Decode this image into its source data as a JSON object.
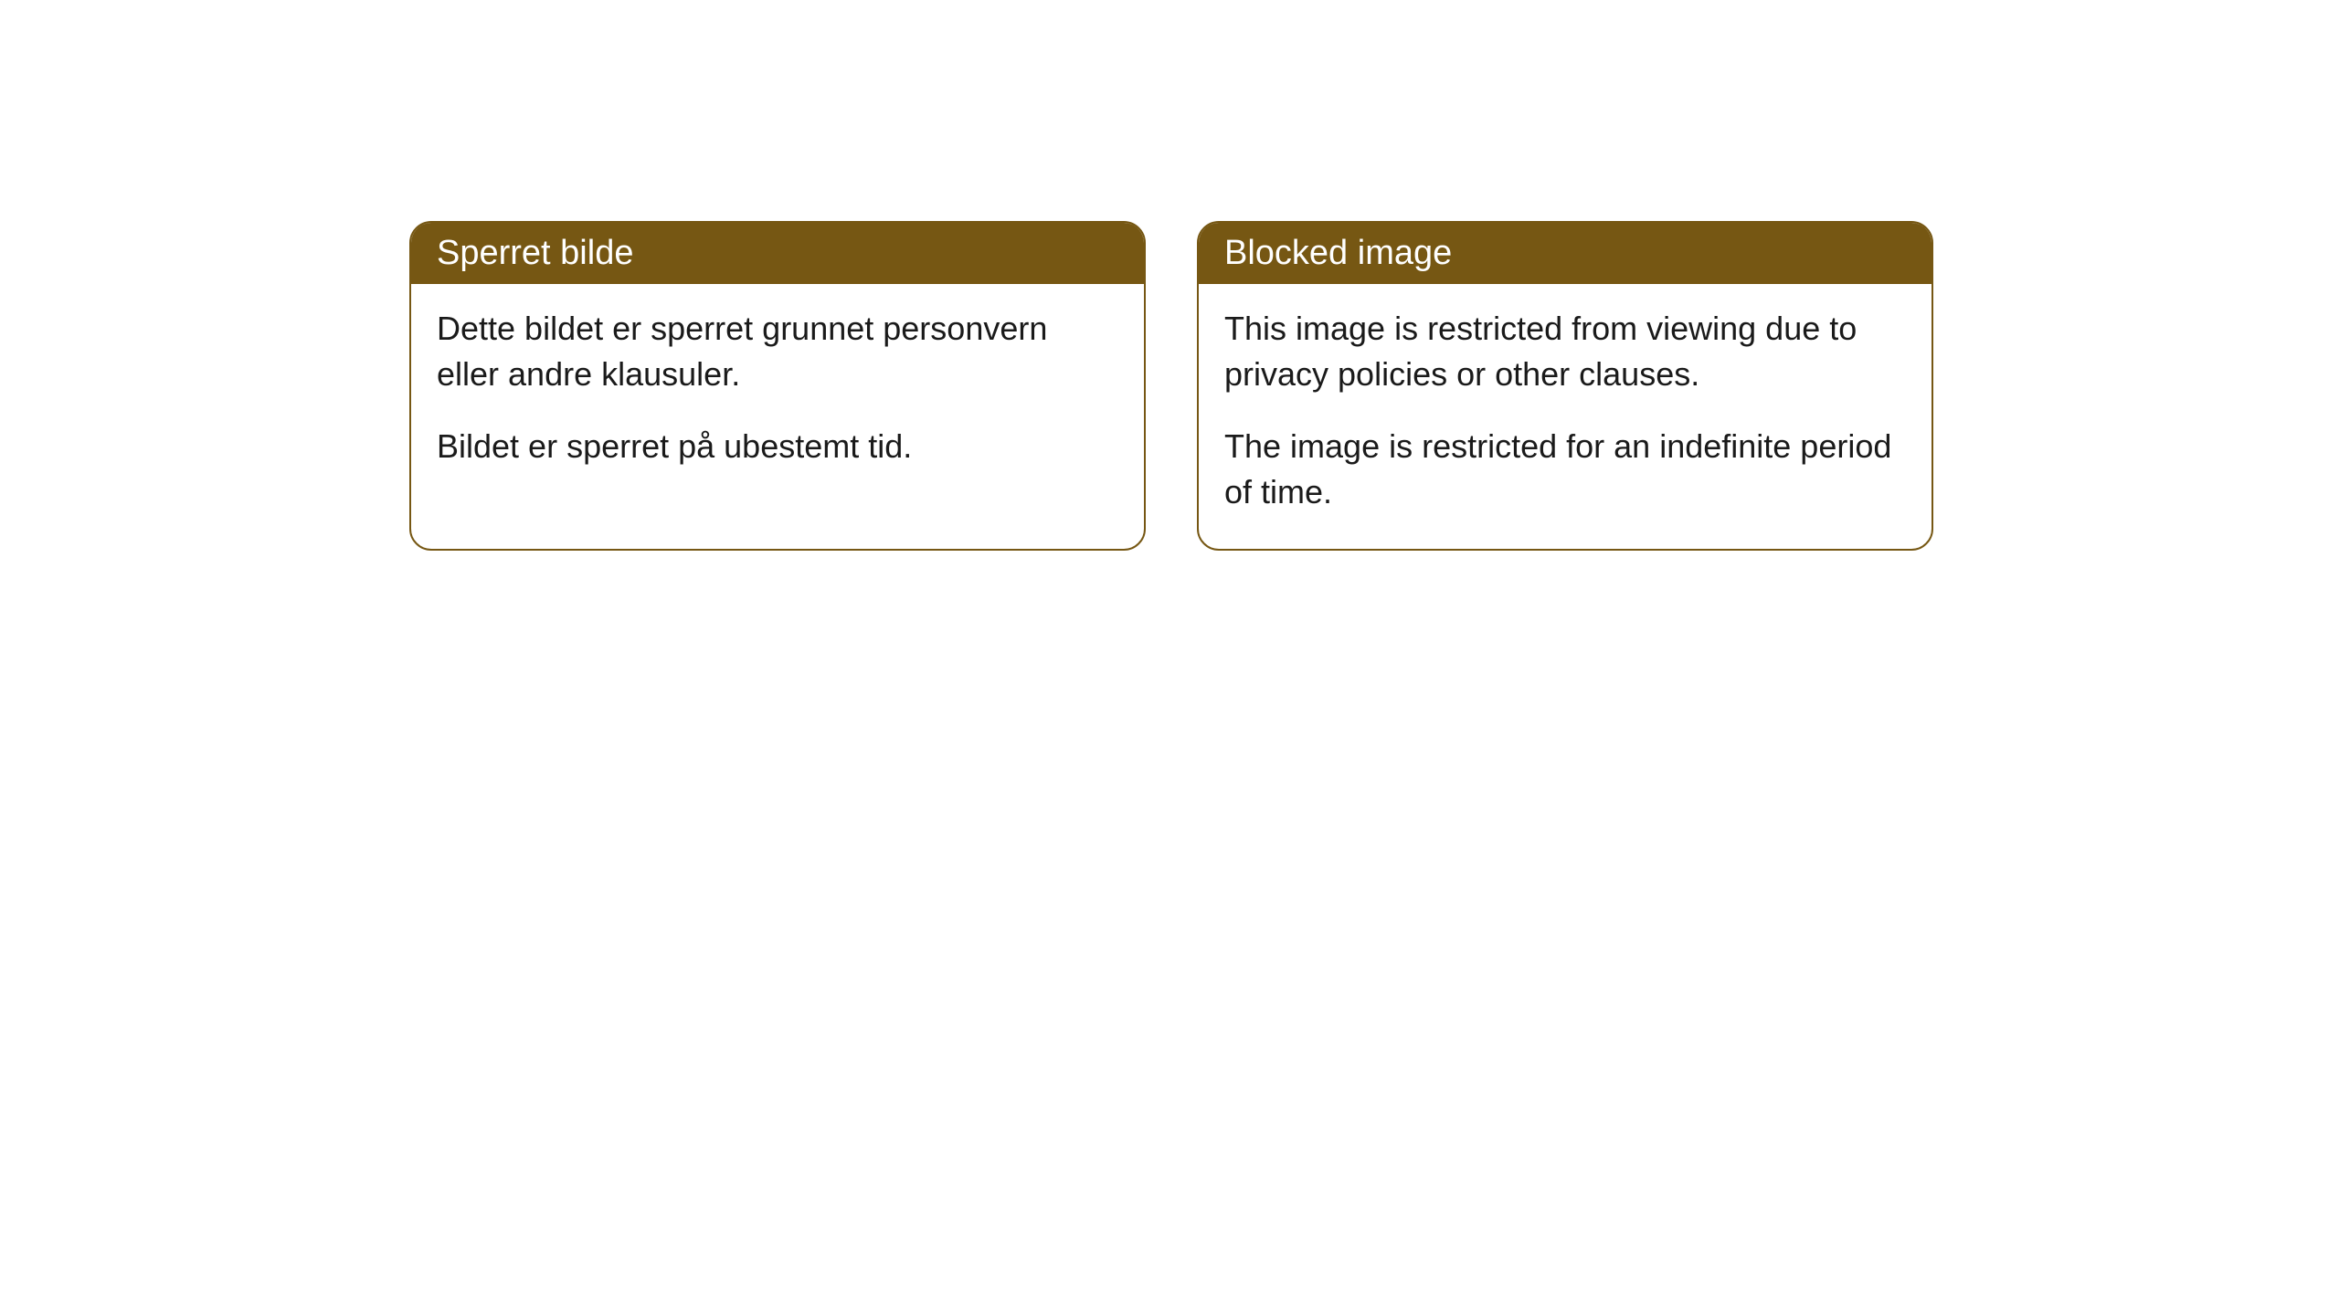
{
  "cards": [
    {
      "header": "Sperret bilde",
      "paragraph1": "Dette bildet er sperret grunnet personvern eller andre klausuler.",
      "paragraph2": "Bildet er sperret på ubestemt tid."
    },
    {
      "header": "Blocked image",
      "paragraph1": "This image is restricted from viewing due to privacy policies or other clauses.",
      "paragraph2": "The image is restricted for an indefinite period of time."
    }
  ],
  "styling": {
    "header_bg_color": "#765713",
    "header_text_color": "#ffffff",
    "border_color": "#765713",
    "body_bg_color": "#ffffff",
    "body_text_color": "#1a1a1a",
    "border_radius": 24,
    "header_font_size": 38,
    "body_font_size": 36
  }
}
